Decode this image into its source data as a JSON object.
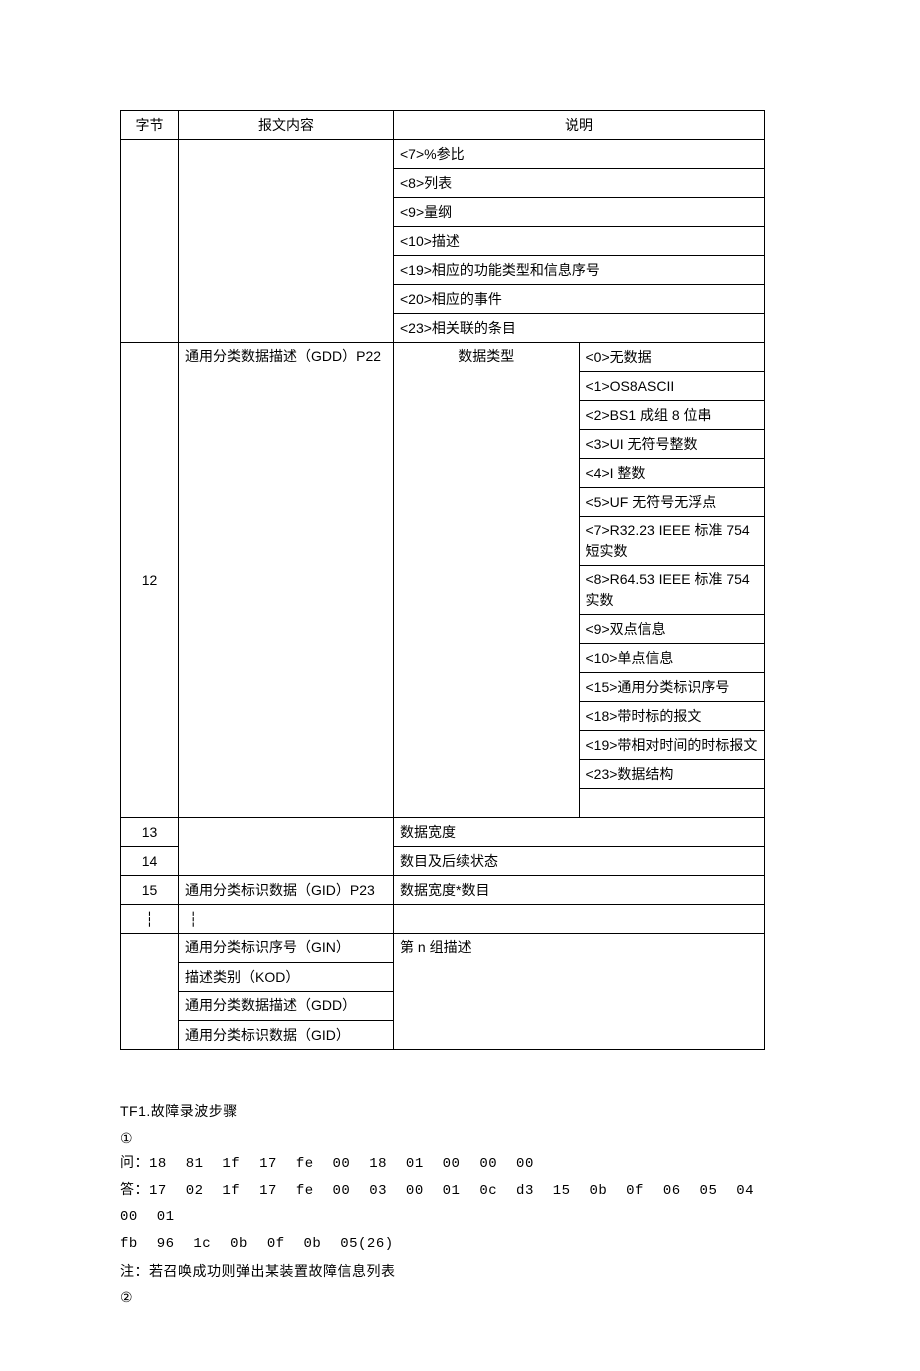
{
  "table": {
    "headers": {
      "byte": "字节",
      "content": "报文内容",
      "desc": "说明"
    },
    "top_rows": [
      "<7>%参比",
      "<8>列表",
      "<9>量纲",
      "<10>描述",
      "<19>相应的功能类型和信息序号",
      "<20>相应的事件",
      "<23>相关联的条目"
    ],
    "gdd_label": "通用分类数据描述（GDD）P22",
    "byte12": "12",
    "dt_label": "数据类型",
    "dt_rows": [
      "<0>无数据",
      "<1>OS8ASCII",
      "<2>BS1 成组 8 位串",
      "<3>UI 无符号整数",
      "<4>I 整数",
      "<5>UF 无符号无浮点",
      "<7>R32.23 IEEE 标准 754 短实数",
      "<8>R64.53 IEEE 标准 754 实数",
      "<9>双点信息",
      "<10>单点信息",
      "<15>通用分类标识序号",
      "<18>带时标的报文",
      "<19>带相对时间的时标报文",
      "<23>数据结构"
    ],
    "r13": {
      "byte": "13",
      "desc": "数据宽度"
    },
    "r14": {
      "byte": "14",
      "desc": "数目及后续状态"
    },
    "r15": {
      "byte": "15",
      "content": "通用分类标识数据（GID）P23",
      "desc": "数据宽度*数目"
    },
    "dots": {
      "byte": "┆",
      "content": "┆"
    },
    "gin": {
      "content": "通用分类标识序号（GIN）",
      "desc": "第 n 组描述"
    },
    "kod": {
      "content": "描述类别（KOD）"
    },
    "gdd2": {
      "content": "通用分类数据描述（GDD）"
    },
    "gid2": {
      "content": "通用分类标识数据（GID）"
    }
  },
  "body": {
    "title": "TF1.故障录波步骤",
    "step1": "①",
    "q_label": "问：",
    "q_hex": "18   81   1f   17   fe   00   18   01   00   00   00",
    "a_label": "答：",
    "a_hex1": "17   02   1f   17   fe   00   03   00   01   0c   d3   15   0b   0f   06   05   04   00   01",
    "a_hex2": "fb   96   1c   0b   0f   0b   05(26)",
    "note": "注：若召唤成功则弹出某装置故障信息列表",
    "step2": "②"
  }
}
